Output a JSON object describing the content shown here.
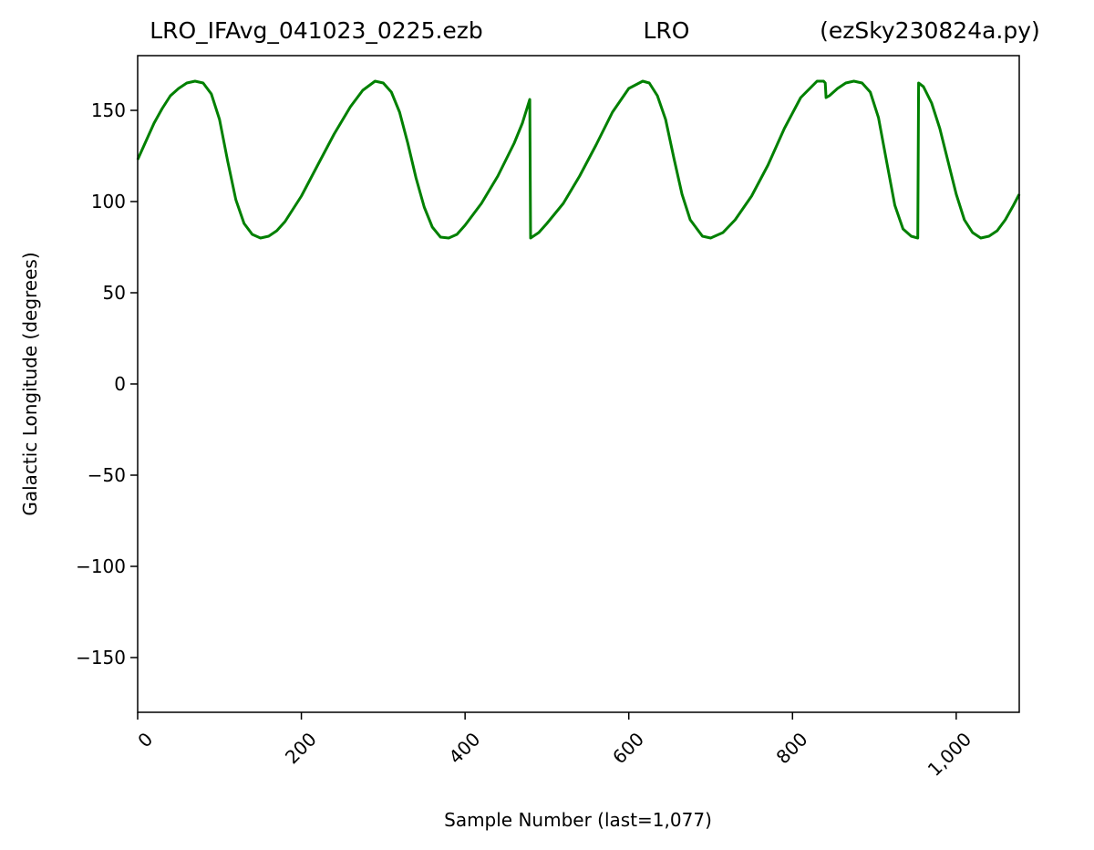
{
  "chart_data": {
    "type": "line",
    "title": {
      "left": "LRO_IFAvg_041023_0225.ezb",
      "center": "LRO",
      "right": "(ezSky230824a.py)"
    },
    "xlabel": "Sample Number (last=1,077)",
    "ylabel": "Galactic Longitude (degrees)",
    "xlim": [
      0,
      1077
    ],
    "ylim": [
      -180,
      180
    ],
    "xticks": [
      0,
      200,
      400,
      600,
      800,
      1000
    ],
    "xtick_labels": [
      "0",
      "200",
      "400",
      "600",
      "800",
      "1,000"
    ],
    "yticks": [
      150,
      100,
      50,
      0,
      -50,
      -100,
      -150
    ],
    "ytick_labels": [
      "150",
      "100",
      "50",
      "0",
      "−50",
      "−100",
      "−150"
    ],
    "grid": false,
    "legend": "none",
    "series": [
      {
        "color": "#008000",
        "points": [
          [
            0,
            123
          ],
          [
            10,
            133
          ],
          [
            20,
            143
          ],
          [
            30,
            151
          ],
          [
            40,
            158
          ],
          [
            50,
            162
          ],
          [
            60,
            165
          ],
          [
            70,
            166
          ],
          [
            80,
            165
          ],
          [
            90,
            159
          ],
          [
            100,
            145
          ],
          [
            110,
            122
          ],
          [
            120,
            101
          ],
          [
            130,
            88
          ],
          [
            140,
            82
          ],
          [
            150,
            80
          ],
          [
            160,
            81
          ],
          [
            170,
            84
          ],
          [
            180,
            89
          ],
          [
            200,
            103
          ],
          [
            220,
            120
          ],
          [
            240,
            137
          ],
          [
            260,
            152
          ],
          [
            275,
            161
          ],
          [
            290,
            166
          ],
          [
            300,
            165
          ],
          [
            310,
            160
          ],
          [
            320,
            149
          ],
          [
            330,
            132
          ],
          [
            340,
            113
          ],
          [
            350,
            97
          ],
          [
            360,
            86
          ],
          [
            370,
            80.5
          ],
          [
            380,
            80
          ],
          [
            390,
            82
          ],
          [
            400,
            87
          ],
          [
            420,
            99
          ],
          [
            440,
            114
          ],
          [
            460,
            132
          ],
          [
            470,
            143
          ],
          [
            479,
            156
          ],
          [
            480,
            80
          ],
          [
            490,
            83
          ],
          [
            500,
            88
          ],
          [
            520,
            99
          ],
          [
            540,
            114
          ],
          [
            560,
            131
          ],
          [
            580,
            149
          ],
          [
            600,
            162
          ],
          [
            617,
            166
          ],
          [
            625,
            165
          ],
          [
            635,
            158
          ],
          [
            645,
            145
          ],
          [
            655,
            124
          ],
          [
            665,
            104
          ],
          [
            675,
            90
          ],
          [
            690,
            81
          ],
          [
            700,
            80
          ],
          [
            715,
            83
          ],
          [
            730,
            90
          ],
          [
            750,
            103
          ],
          [
            770,
            120
          ],
          [
            790,
            140
          ],
          [
            810,
            157
          ],
          [
            830,
            166
          ],
          [
            838,
            166
          ],
          [
            840,
            165
          ],
          [
            841,
            157
          ],
          [
            845,
            158
          ],
          [
            855,
            162
          ],
          [
            865,
            165
          ],
          [
            875,
            166
          ],
          [
            885,
            165
          ],
          [
            895,
            160
          ],
          [
            905,
            146
          ],
          [
            915,
            122
          ],
          [
            925,
            98
          ],
          [
            935,
            85
          ],
          [
            945,
            81
          ],
          [
            953,
            80
          ],
          [
            954,
            165
          ],
          [
            960,
            163
          ],
          [
            970,
            154
          ],
          [
            980,
            140
          ],
          [
            990,
            122
          ],
          [
            1000,
            104
          ],
          [
            1010,
            90
          ],
          [
            1020,
            83
          ],
          [
            1030,
            80
          ],
          [
            1040,
            81
          ],
          [
            1050,
            84
          ],
          [
            1060,
            90
          ],
          [
            1070,
            98
          ],
          [
            1077,
            104
          ]
        ]
      }
    ]
  }
}
